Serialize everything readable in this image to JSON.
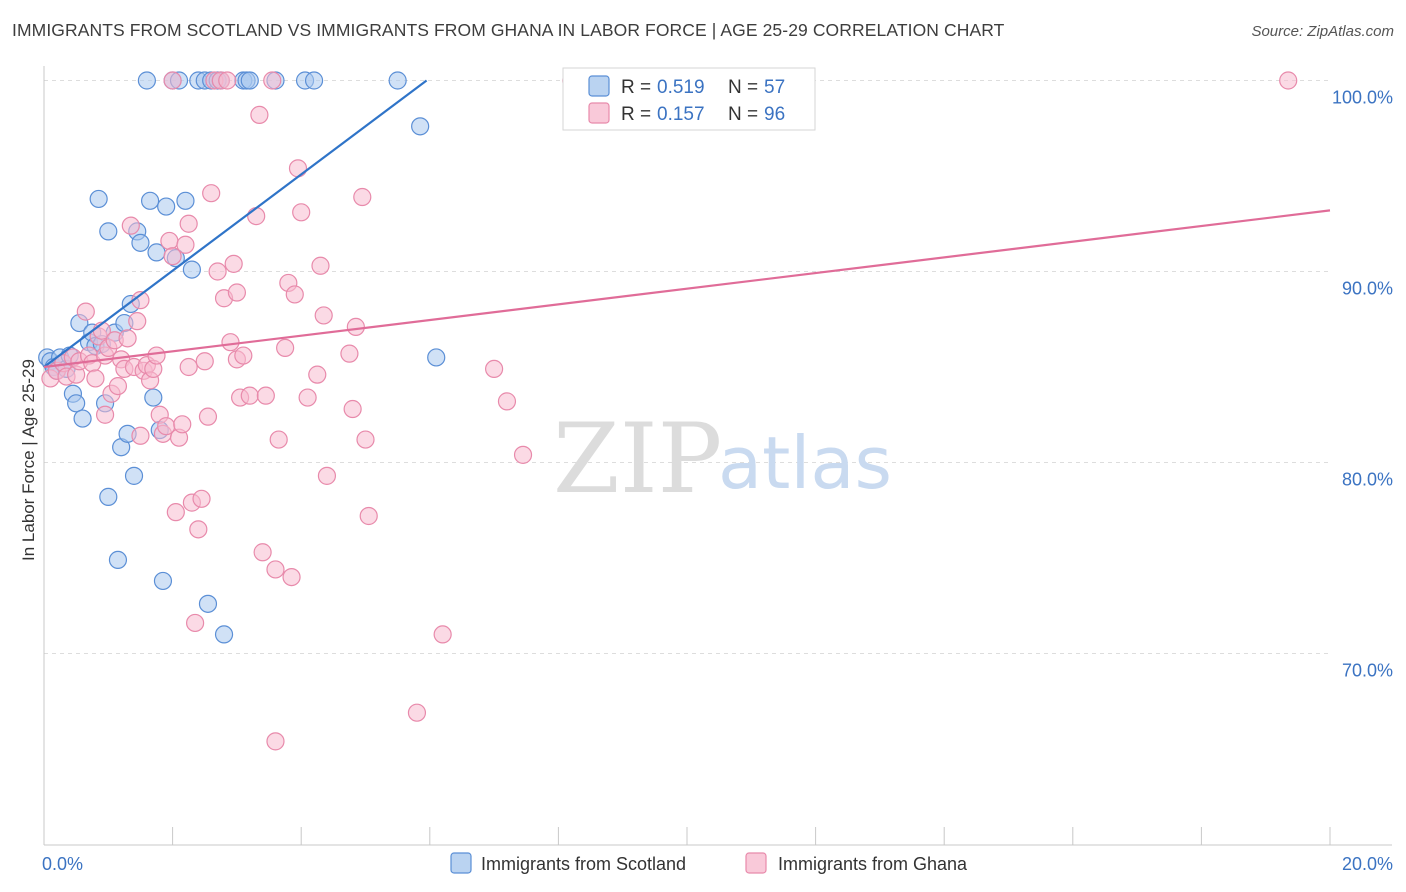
{
  "header": {
    "title": "IMMIGRANTS FROM SCOTLAND VS IMMIGRANTS FROM GHANA IN LABOR FORCE | AGE 25-29 CORRELATION CHART",
    "source": "Source: ZipAtlas.com"
  },
  "watermark": {
    "zip": "ZIP",
    "atlas": "atlas"
  },
  "legend": {
    "r_label": "R =",
    "n_label": "N =",
    "scotland": {
      "r": "0.519",
      "n": "57"
    },
    "ghana": {
      "r": "0.157",
      "n": "96"
    }
  },
  "colors": {
    "scotland_fill": "#a9c8ee",
    "scotland_stroke": "#5b8fd6",
    "scotland_line": "#2f74c8",
    "ghana_fill": "#f7bcd0",
    "ghana_stroke": "#e88aab",
    "ghana_line": "#e06c98",
    "tick_text": "#3b73c2",
    "grid": "#dddddd"
  },
  "chart_data": {
    "type": "scatter",
    "title": "IMMIGRANTS FROM SCOTLAND VS IMMIGRANTS FROM GHANA IN LABOR FORCE | AGE 25-29 CORRELATION CHART",
    "xlabel": "",
    "ylabel": "In Labor Force | Age 25-29",
    "xlim": [
      0,
      20
    ],
    "ylim": [
      60,
      101
    ],
    "x_tick_labels": [
      "0.0%",
      "20.0%"
    ],
    "y_ticks": [
      70,
      80,
      90,
      100
    ],
    "y_tick_labels": [
      "70.0%",
      "80.0%",
      "90.0%",
      "100.0%"
    ],
    "grid": true,
    "legend_position": "top-center",
    "series": [
      {
        "name": "Immigrants from Scotland",
        "r": 0.519,
        "n": 57,
        "trend": {
          "x": [
            0.0,
            5.95
          ],
          "y": [
            85.0,
            100.0
          ]
        },
        "points": [
          [
            0.05,
            85.5
          ],
          [
            0.1,
            85.3
          ],
          [
            0.15,
            85.0
          ],
          [
            0.2,
            84.8
          ],
          [
            0.25,
            85.5
          ],
          [
            0.3,
            85.2
          ],
          [
            0.35,
            84.9
          ],
          [
            0.4,
            85.6
          ],
          [
            0.45,
            83.6
          ],
          [
            0.5,
            83.1
          ],
          [
            0.55,
            87.3
          ],
          [
            0.6,
            82.3
          ],
          [
            0.7,
            86.3
          ],
          [
            0.75,
            86.8
          ],
          [
            0.8,
            86.1
          ],
          [
            0.85,
            93.8
          ],
          [
            0.9,
            86.2
          ],
          [
            0.95,
            83.1
          ],
          [
            1.0,
            78.2
          ],
          [
            1.0,
            92.1
          ],
          [
            1.1,
            86.8
          ],
          [
            1.15,
            74.9
          ],
          [
            1.2,
            80.8
          ],
          [
            1.25,
            87.3
          ],
          [
            1.3,
            81.5
          ],
          [
            1.35,
            88.3
          ],
          [
            1.4,
            79.3
          ],
          [
            1.45,
            92.1
          ],
          [
            1.5,
            91.5
          ],
          [
            1.6,
            100.0
          ],
          [
            1.65,
            93.7
          ],
          [
            1.7,
            83.4
          ],
          [
            1.75,
            91.0
          ],
          [
            1.8,
            81.7
          ],
          [
            1.85,
            73.8
          ],
          [
            1.9,
            93.4
          ],
          [
            2.0,
            100.0
          ],
          [
            2.05,
            90.7
          ],
          [
            2.1,
            100.0
          ],
          [
            2.2,
            93.7
          ],
          [
            2.3,
            90.1
          ],
          [
            2.4,
            100.0
          ],
          [
            2.5,
            100.0
          ],
          [
            2.55,
            72.6
          ],
          [
            2.6,
            100.0
          ],
          [
            2.7,
            100.0
          ],
          [
            2.75,
            100.0
          ],
          [
            2.8,
            71.0
          ],
          [
            3.1,
            100.0
          ],
          [
            3.15,
            100.0
          ],
          [
            3.2,
            100.0
          ],
          [
            3.6,
            100.0
          ],
          [
            4.06,
            100.0
          ],
          [
            4.2,
            100.0
          ],
          [
            5.5,
            100.0
          ],
          [
            5.85,
            97.6
          ],
          [
            6.1,
            85.5
          ]
        ]
      },
      {
        "name": "Immigrants from Ghana",
        "r": 0.157,
        "n": 96,
        "trend": {
          "x": [
            0.0,
            20.0
          ],
          "y": [
            85.0,
            93.2
          ]
        },
        "points": [
          [
            0.1,
            84.4
          ],
          [
            0.2,
            84.8
          ],
          [
            0.3,
            85.2
          ],
          [
            0.35,
            84.5
          ],
          [
            0.45,
            85.5
          ],
          [
            0.5,
            84.6
          ],
          [
            0.55,
            85.3
          ],
          [
            0.65,
            87.9
          ],
          [
            0.7,
            85.6
          ],
          [
            0.75,
            85.2
          ],
          [
            0.8,
            84.4
          ],
          [
            0.85,
            86.6
          ],
          [
            0.9,
            86.9
          ],
          [
            0.95,
            85.6
          ],
          [
            1.0,
            86.0
          ],
          [
            1.05,
            83.6
          ],
          [
            1.1,
            86.4
          ],
          [
            1.2,
            85.4
          ],
          [
            1.25,
            84.9
          ],
          [
            1.3,
            86.5
          ],
          [
            1.35,
            92.4
          ],
          [
            1.4,
            85.0
          ],
          [
            1.45,
            87.4
          ],
          [
            1.5,
            88.5
          ],
          [
            1.5,
            81.4
          ],
          [
            1.55,
            84.8
          ],
          [
            1.6,
            85.1
          ],
          [
            1.65,
            84.3
          ],
          [
            1.7,
            84.9
          ],
          [
            1.75,
            85.6
          ],
          [
            1.8,
            82.5
          ],
          [
            1.85,
            81.5
          ],
          [
            1.9,
            81.9
          ],
          [
            1.95,
            91.6
          ],
          [
            2.0,
            90.8
          ],
          [
            2.05,
            77.4
          ],
          [
            2.1,
            81.3
          ],
          [
            2.15,
            82.0
          ],
          [
            2.2,
            91.4
          ],
          [
            2.25,
            92.5
          ],
          [
            2.3,
            77.9
          ],
          [
            2.35,
            71.6
          ],
          [
            2.4,
            76.5
          ],
          [
            2.45,
            78.1
          ],
          [
            2.5,
            85.3
          ],
          [
            2.55,
            82.4
          ],
          [
            2.6,
            94.1
          ],
          [
            2.65,
            100.0
          ],
          [
            2.7,
            90.0
          ],
          [
            2.75,
            100.0
          ],
          [
            2.8,
            88.6
          ],
          [
            2.85,
            100.0
          ],
          [
            2.9,
            86.3
          ],
          [
            2.95,
            90.4
          ],
          [
            3.0,
            85.4
          ],
          [
            3.05,
            83.4
          ],
          [
            3.1,
            85.6
          ],
          [
            3.2,
            83.5
          ],
          [
            3.3,
            92.9
          ],
          [
            3.35,
            98.2
          ],
          [
            3.4,
            75.3
          ],
          [
            3.45,
            83.5
          ],
          [
            3.55,
            100.0
          ],
          [
            3.6,
            74.4
          ],
          [
            3.65,
            81.2
          ],
          [
            3.75,
            86.0
          ],
          [
            3.8,
            89.4
          ],
          [
            3.85,
            74.0
          ],
          [
            3.9,
            88.8
          ],
          [
            3.95,
            95.4
          ],
          [
            4.0,
            93.1
          ],
          [
            4.1,
            83.4
          ],
          [
            4.25,
            84.6
          ],
          [
            4.3,
            90.3
          ],
          [
            4.35,
            87.7
          ],
          [
            4.4,
            79.3
          ],
          [
            4.75,
            85.7
          ],
          [
            4.8,
            82.8
          ],
          [
            4.85,
            87.1
          ],
          [
            4.95,
            93.9
          ],
          [
            5.0,
            81.2
          ],
          [
            5.05,
            77.2
          ],
          [
            3.6,
            65.4
          ],
          [
            5.8,
            66.9
          ],
          [
            6.2,
            71.0
          ],
          [
            7.0,
            84.9
          ],
          [
            7.2,
            83.2
          ],
          [
            7.45,
            80.4
          ],
          [
            8.2,
            100.0
          ],
          [
            9.6,
            100.0
          ],
          [
            19.35,
            100.0
          ],
          [
            2.0,
            100.0
          ],
          [
            0.95,
            82.5
          ],
          [
            1.15,
            84.0
          ],
          [
            2.25,
            85.0
          ],
          [
            3.0,
            88.9
          ]
        ]
      }
    ]
  },
  "bottom_legend": {
    "scotland_label": "Immigrants from Scotland",
    "ghana_label": "Immigrants from Ghana"
  }
}
